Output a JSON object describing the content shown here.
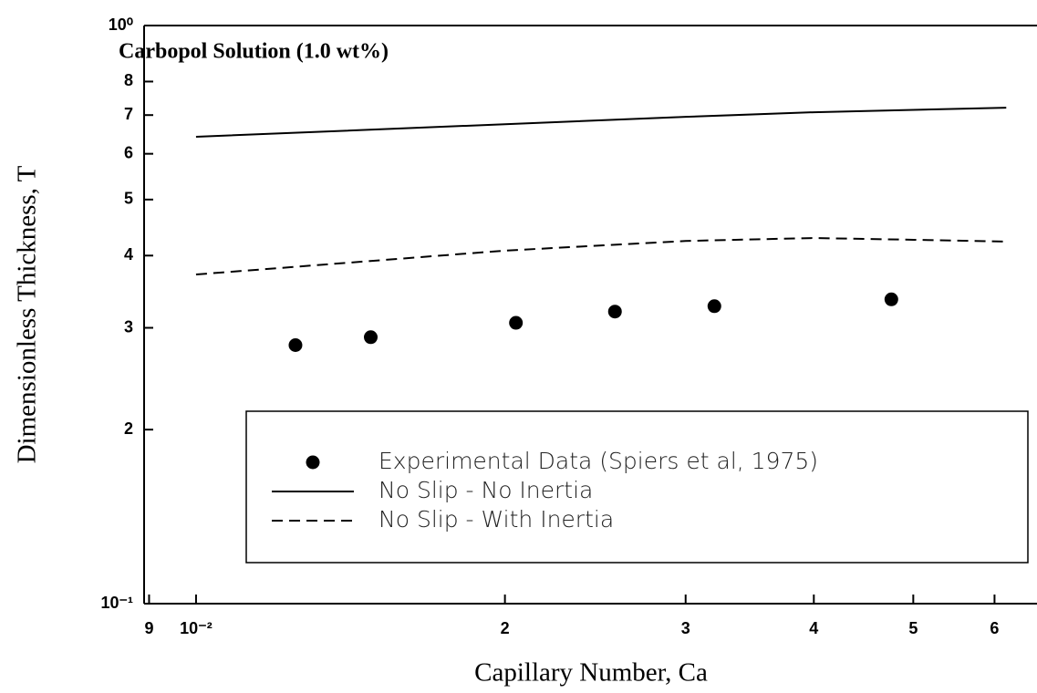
{
  "chart_data": {
    "type": "line",
    "title": "Carbopol Solution (1.0 wt%)",
    "x_label": "Capillary Number, Ca",
    "y_label": "Dimensionless Thickness, T",
    "xlog": true,
    "ylog": true,
    "xlim": [
      0.0089,
      0.066
    ],
    "ylim": [
      0.1,
      1
    ],
    "xticks": [
      {
        "value": 0.009,
        "label": "9"
      },
      {
        "value": 0.01,
        "label": "10⁻²"
      },
      {
        "value": 0.02,
        "label": "2"
      },
      {
        "value": 0.03,
        "label": "3"
      },
      {
        "value": 0.04,
        "label": "4"
      },
      {
        "value": 0.05,
        "label": "5"
      },
      {
        "value": 0.06,
        "label": "6"
      }
    ],
    "yticks": [
      {
        "value": 0.1,
        "label": "10⁻¹"
      },
      {
        "value": 0.2,
        "label": "2"
      },
      {
        "value": 0.3,
        "label": "3"
      },
      {
        "value": 0.4,
        "label": "4"
      },
      {
        "value": 0.5,
        "label": "5"
      },
      {
        "value": 0.6,
        "label": "6"
      },
      {
        "value": 0.7,
        "label": "7"
      },
      {
        "value": 0.8,
        "label": "8"
      },
      {
        "value": 1,
        "label": "10⁰"
      }
    ],
    "grid": false,
    "legend": "bottom-right",
    "series": [
      {
        "name": "Experimental Data (Spiers et al, 1975)",
        "color": "#000000",
        "style": "markers",
        "x": [
          0.0125,
          0.0148,
          0.0205,
          0.0256,
          0.032,
          0.0476
        ],
        "values": [
          0.28,
          0.289,
          0.306,
          0.32,
          0.327,
          0.336
        ]
      },
      {
        "name": "No Slip - No Inertia",
        "color": "#000000",
        "style": "solid",
        "x": [
          0.01,
          0.02,
          0.03,
          0.04,
          0.0616
        ],
        "values": [
          0.642,
          0.675,
          0.695,
          0.708,
          0.721
        ]
      },
      {
        "name": "No Slip - With Inertia",
        "color": "#000000",
        "style": "dashed",
        "x": [
          0.01,
          0.02,
          0.03,
          0.04,
          0.05,
          0.0616
        ],
        "values": [
          0.371,
          0.408,
          0.424,
          0.429,
          0.426,
          0.423
        ]
      }
    ]
  }
}
